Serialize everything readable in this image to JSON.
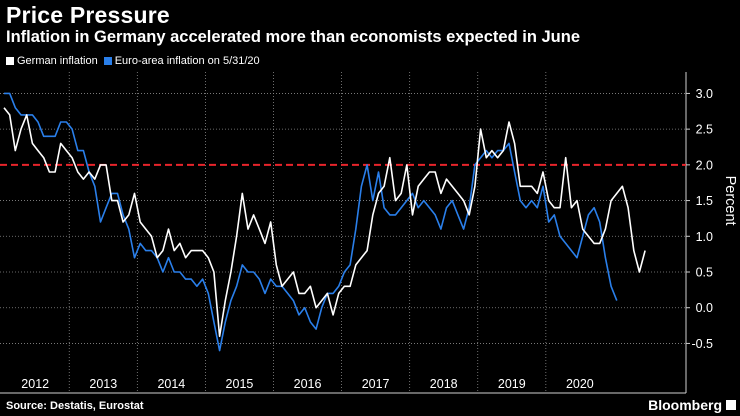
{
  "header": {
    "title": "Price Pressure",
    "subtitle": "Inflation in Germany accelerated more than economists expected in June"
  },
  "footer": {
    "source": "Source: Destatis, Eurostat",
    "brand": "Bloomberg"
  },
  "colors": {
    "german": "#ffffff",
    "euro": "#2a7fea",
    "threshold": "#e8242b",
    "grid": "#8a8a8a"
  },
  "chart_data": {
    "type": "line",
    "title": "Price Pressure",
    "subtitle": "Inflation in Germany accelerated more than economists expected in June",
    "ylabel": "Percent",
    "xlabel": "",
    "ylim": [
      -0.9,
      3.3
    ],
    "yticks": [
      -0.5,
      0.0,
      0.5,
      1.0,
      1.5,
      2.0,
      2.5,
      3.0
    ],
    "ytick_labels": [
      "-0.5",
      "0.0",
      "0.5",
      "1.0",
      "1.5",
      "2.0",
      "2.5",
      "3.0"
    ],
    "xticks": [
      "2012",
      "2013",
      "2014",
      "2015",
      "2016",
      "2017",
      "2018",
      "2019",
      "2020"
    ],
    "reference_line": {
      "value": 2.0,
      "style": "dashed"
    },
    "start": "2012-01",
    "series": [
      {
        "name": "German inflation",
        "values": [
          2.8,
          2.7,
          2.2,
          2.5,
          2.7,
          2.3,
          2.2,
          2.1,
          1.9,
          1.9,
          2.3,
          2.2,
          2.1,
          1.9,
          1.8,
          1.9,
          1.8,
          2.0,
          2.0,
          1.5,
          1.5,
          1.2,
          1.3,
          1.6,
          1.2,
          1.1,
          1.0,
          0.7,
          0.8,
          1.1,
          0.8,
          0.9,
          0.7,
          0.8,
          0.8,
          0.8,
          0.7,
          0.5,
          -0.4,
          0.1,
          0.5,
          1.0,
          1.6,
          1.1,
          1.3,
          1.1,
          0.9,
          1.2,
          0.6,
          0.3,
          0.4,
          0.5,
          0.2,
          0.2,
          0.3,
          0.0,
          0.1,
          0.2,
          -0.1,
          0.2,
          0.3,
          0.3,
          0.6,
          0.7,
          0.8,
          1.3,
          1.6,
          1.7,
          2.1,
          1.5,
          1.6,
          2.0,
          1.3,
          1.7,
          1.8,
          1.9,
          1.9,
          1.6,
          1.8,
          1.7,
          1.6,
          1.5,
          1.3,
          1.7,
          2.5,
          2.1,
          2.2,
          2.1,
          2.2,
          2.6,
          2.3,
          1.7,
          1.7,
          1.7,
          1.6,
          1.9,
          1.5,
          1.4,
          1.4,
          2.1,
          1.4,
          1.5,
          1.1,
          1.0,
          0.9,
          0.9,
          1.1,
          1.5,
          1.6,
          1.7,
          1.4,
          0.8,
          0.5,
          0.8
        ]
      },
      {
        "name": "Euro-area inflation on 5/31/20",
        "values": [
          3.0,
          3.0,
          2.8,
          2.7,
          2.7,
          2.7,
          2.6,
          2.4,
          2.4,
          2.4,
          2.6,
          2.6,
          2.5,
          2.2,
          2.2,
          1.9,
          1.7,
          1.2,
          1.4,
          1.6,
          1.6,
          1.3,
          1.1,
          0.7,
          0.9,
          0.8,
          0.8,
          0.7,
          0.5,
          0.7,
          0.5,
          0.5,
          0.4,
          0.4,
          0.3,
          0.4,
          0.2,
          -0.2,
          -0.6,
          -0.2,
          0.1,
          0.3,
          0.6,
          0.5,
          0.5,
          0.4,
          0.2,
          0.4,
          0.3,
          0.3,
          0.2,
          0.1,
          -0.1,
          0.0,
          -0.2,
          -0.3,
          0.0,
          0.2,
          0.2,
          0.3,
          0.5,
          0.6,
          1.1,
          1.7,
          2.0,
          1.5,
          1.9,
          1.4,
          1.3,
          1.3,
          1.4,
          1.5,
          1.6,
          1.4,
          1.5,
          1.4,
          1.3,
          1.1,
          1.4,
          1.5,
          1.3,
          1.1,
          1.4,
          2.0,
          2.1,
          2.2,
          2.1,
          2.2,
          2.2,
          2.3,
          1.9,
          1.5,
          1.4,
          1.5,
          1.4,
          1.7,
          1.2,
          1.3,
          1.0,
          0.9,
          0.8,
          0.7,
          1.0,
          1.3,
          1.4,
          1.2,
          0.7,
          0.3,
          0.1
        ]
      }
    ]
  }
}
